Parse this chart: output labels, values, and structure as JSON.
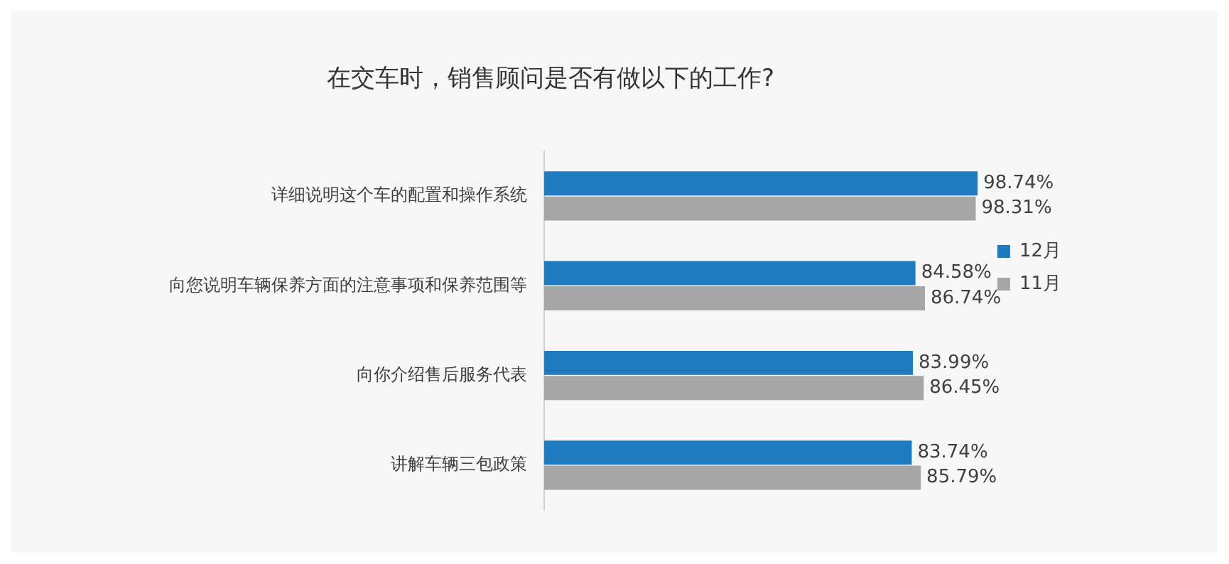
{
  "chart_data": {
    "type": "bar",
    "orientation": "horizontal",
    "title": "在交车时，销售顾问是否有做以下的工作?",
    "categories": [
      "详细说明这个车的配置和操作系统",
      "向您说明车辆保养方面的注意事项和保养范围等",
      "向你介绍售后服务代表",
      "讲解车辆三包政策"
    ],
    "series": [
      {
        "name": "12月",
        "color": "#1f7bbf",
        "values": [
          98.74,
          84.58,
          83.99,
          83.74
        ],
        "value_labels": [
          "98.74%",
          "84.58%",
          "83.99%",
          "83.74%"
        ]
      },
      {
        "name": "11月",
        "color": "#a6a6a6",
        "values": [
          98.31,
          86.74,
          86.45,
          85.79
        ],
        "value_labels": [
          "98.31%",
          "86.74%",
          "86.45%",
          "85.79%"
        ]
      }
    ],
    "tick_labels": "y",
    "legend": "right"
  }
}
